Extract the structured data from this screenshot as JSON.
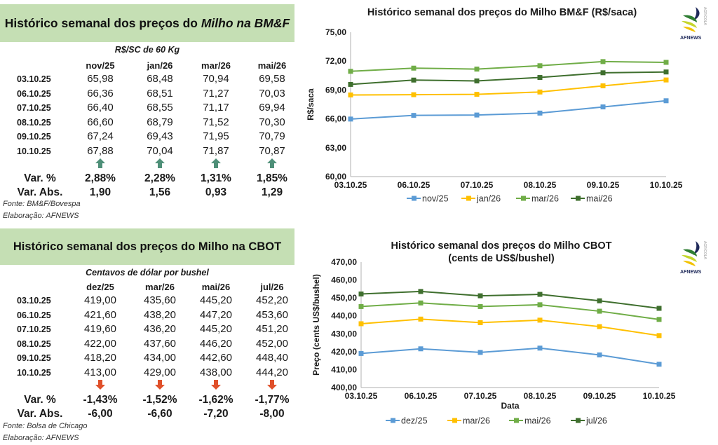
{
  "bmf_table": {
    "title_plain": "Histórico semanal dos preços do ",
    "title_italic": "Milho na BM&F",
    "unit": "R$/SC de 60 Kg",
    "columns": [
      "nov/25",
      "jan/26",
      "mar/26",
      "mai/26"
    ],
    "rows": [
      {
        "date": "03.10.25",
        "values": [
          "65,98",
          "68,48",
          "70,94",
          "69,58"
        ]
      },
      {
        "date": "06.10.25",
        "values": [
          "66,36",
          "68,51",
          "71,27",
          "70,03"
        ]
      },
      {
        "date": "07.10.25",
        "values": [
          "66,40",
          "68,55",
          "71,17",
          "69,94"
        ]
      },
      {
        "date": "08.10.25",
        "values": [
          "66,60",
          "68,79",
          "71,52",
          "70,30"
        ]
      },
      {
        "date": "09.10.25",
        "values": [
          "67,24",
          "69,43",
          "71,95",
          "70,79"
        ]
      },
      {
        "date": "10.10.25",
        "values": [
          "67,88",
          "70,04",
          "71,87",
          "70,87"
        ]
      }
    ],
    "trend_icons": [
      "arrow-up",
      "arrow-up",
      "arrow-up",
      "arrow-up"
    ],
    "trend_color": "#4e8f78",
    "var_pct_label": "Var. %",
    "var_pct": [
      "2,88%",
      "2,28%",
      "1,31%",
      "1,85%"
    ],
    "var_abs_label": "Var. Abs.",
    "var_abs": [
      "1,90",
      "1,56",
      "0,93",
      "1,29"
    ],
    "source": "Fonte: BM&F/Bovespa",
    "credit": "Elaboração: AFNEWS"
  },
  "cbot_table": {
    "title": "Histórico semanal dos preços do Milho na CBOT",
    "unit": "Centavos de dólar por bushel",
    "columns": [
      "dez/25",
      "mar/26",
      "mai/26",
      "jul/26"
    ],
    "rows": [
      {
        "date": "03.10.25",
        "values": [
          "419,00",
          "435,60",
          "445,20",
          "452,20"
        ]
      },
      {
        "date": "06.10.25",
        "values": [
          "421,60",
          "438,20",
          "447,20",
          "453,60"
        ]
      },
      {
        "date": "07.10.25",
        "values": [
          "419,60",
          "436,20",
          "445,20",
          "451,20"
        ]
      },
      {
        "date": "08.10.25",
        "values": [
          "422,00",
          "437,60",
          "446,20",
          "452,00"
        ]
      },
      {
        "date": "09.10.25",
        "values": [
          "418,20",
          "434,00",
          "442,60",
          "448,40"
        ]
      },
      {
        "date": "10.10.25",
        "values": [
          "413,00",
          "429,00",
          "438,00",
          "444,20"
        ]
      }
    ],
    "trend_icons": [
      "arrow-down",
      "arrow-down",
      "arrow-down",
      "arrow-down"
    ],
    "trend_color": "#e0502a",
    "var_pct_label": "Var. %",
    "var_pct": [
      "-1,43%",
      "-1,52%",
      "-1,62%",
      "-1,77%"
    ],
    "var_abs_label": "Var. Abs.",
    "var_abs": [
      "-6,00",
      "-6,60",
      "-7,20",
      "-8,00"
    ],
    "source": "Fonte: Bolsa de Chicago",
    "credit": "Elaboração: AFNEWS"
  },
  "logo": {
    "brand": "AFNEWS",
    "sub": "AGRÍCOLA"
  },
  "chart_data": [
    {
      "type": "line",
      "title": "Histórico semanal dos preços do Milho BM&F (R$/saca)",
      "xlabel": "",
      "ylabel": "R$/saca",
      "x": [
        "03.10.25",
        "06.10.25",
        "07.10.25",
        "08.10.25",
        "09.10.25",
        "10.10.25"
      ],
      "ylim": [
        60,
        75
      ],
      "yticks": [
        "60,00",
        "63,00",
        "66,00",
        "69,00",
        "72,00",
        "75,00"
      ],
      "ytick_values": [
        60,
        63,
        66,
        69,
        72,
        75
      ],
      "grid": false,
      "legend": "bottom",
      "series": [
        {
          "name": "nov/25",
          "color": "#5b9bd5",
          "values": [
            65.98,
            66.36,
            66.4,
            66.6,
            67.24,
            67.88
          ]
        },
        {
          "name": "jan/26",
          "color": "#ffc000",
          "values": [
            68.48,
            68.51,
            68.55,
            68.79,
            69.43,
            70.04
          ]
        },
        {
          "name": "mar/26",
          "color": "#70ad47",
          "values": [
            70.94,
            71.27,
            71.17,
            71.52,
            71.95,
            71.87
          ]
        },
        {
          "name": "mai/26",
          "color": "#3f6f2e",
          "values": [
            69.58,
            70.03,
            69.94,
            70.3,
            70.79,
            70.87
          ]
        }
      ]
    },
    {
      "type": "line",
      "title": "Histórico semanal dos preços do Milho CBOT",
      "subtitle": "(cents de US$/bushel)",
      "xlabel": "Data",
      "ylabel": "Preço (cents US$/bushel)",
      "x": [
        "03.10.25",
        "06.10.25",
        "07.10.25",
        "08.10.25",
        "09.10.25",
        "10.10.25"
      ],
      "ylim": [
        400,
        470
      ],
      "yticks": [
        "400,00",
        "410,00",
        "420,00",
        "430,00",
        "440,00",
        "450,00",
        "460,00",
        "470,00"
      ],
      "ytick_values": [
        400,
        410,
        420,
        430,
        440,
        450,
        460,
        470
      ],
      "grid": false,
      "legend": "bottom",
      "series": [
        {
          "name": "dez/25",
          "color": "#5b9bd5",
          "values": [
            419.0,
            421.6,
            419.6,
            422.0,
            418.2,
            413.0
          ]
        },
        {
          "name": "mar/26",
          "color": "#ffc000",
          "values": [
            435.6,
            438.2,
            436.2,
            437.6,
            434.0,
            429.0
          ]
        },
        {
          "name": "mai/26",
          "color": "#70ad47",
          "values": [
            445.2,
            447.2,
            445.2,
            446.2,
            442.6,
            438.0
          ]
        },
        {
          "name": "jul/26",
          "color": "#3f6f2e",
          "values": [
            452.2,
            453.6,
            451.2,
            452.0,
            448.4,
            444.2
          ]
        }
      ]
    }
  ]
}
